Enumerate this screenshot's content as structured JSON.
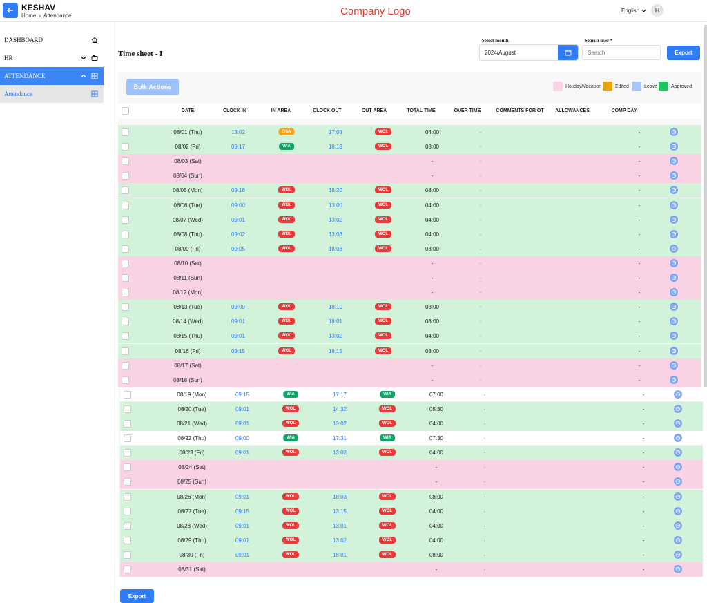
{
  "header": {
    "user_name": "KESHAV",
    "breadcrumb": [
      "Home",
      "Attendance"
    ],
    "logo_text": "Company Logo",
    "language": "English",
    "avatar_initial": "H"
  },
  "sidebar": {
    "items": [
      {
        "label": "DASHBOARD",
        "icon": "home-icon"
      },
      {
        "label": "HR",
        "icon": "folder-icon"
      },
      {
        "label": "ATTENDANCE",
        "icon": "grid-icon",
        "active": true
      },
      {
        "label": "Attendance",
        "icon": "grid-icon",
        "sub": true
      }
    ]
  },
  "page": {
    "title": "Time sheet",
    "title_suffix": "- I",
    "select_month_label": "Select month",
    "select_month_value": "2024/August",
    "search_user_label": "Search user *",
    "search_placeholder": "Search",
    "export_label": "Export",
    "bulk_actions_label": "Bulk Actions",
    "export_bottom_label": "Export"
  },
  "legend": [
    {
      "label": "Holiday/Vacation",
      "color": "#f9d3e3"
    },
    {
      "label": "Edited",
      "color": "#e8a40f"
    },
    {
      "label": "Leave",
      "color": "#a8c8fb"
    },
    {
      "label": "Approved",
      "color": "#1fc15e"
    }
  ],
  "colors": {
    "accent": "#2f7cf6",
    "approved_row": "#d2f2da",
    "holiday_row": "#f9d3e3",
    "plain_row": "#ffffff"
  },
  "table": {
    "headers": [
      "DATE",
      "CLOCK IN",
      "IN AREA",
      "CLOCK OUT",
      "OUT AREA",
      "TOTAL TIME",
      "OVER TIME",
      "COMMENTS FOR OT",
      "ALLOWANCES",
      "COMP DAY"
    ],
    "rows": [
      {
        "date": "08/01 (Thu)",
        "in": "13:02",
        "in_area": "OSA",
        "out": "17:03",
        "out_area": "WOL",
        "total": "04:00",
        "ot": "-",
        "comp": "-",
        "status": "approved"
      },
      {
        "date": "08/02 (Fri)",
        "in": "09:17",
        "in_area": "WIA",
        "out": "18:18",
        "out_area": "WOL",
        "total": "08:00",
        "ot": "-",
        "comp": "-",
        "status": "approved"
      },
      {
        "date": "08/03 (Sat)",
        "in": "",
        "in_area": "",
        "out": "",
        "out_area": "",
        "total": "-",
        "ot": "-",
        "comp": "-",
        "status": "holiday"
      },
      {
        "date": "08/04 (Sun)",
        "in": "",
        "in_area": "",
        "out": "",
        "out_area": "",
        "total": "-",
        "ot": "-",
        "comp": "-",
        "status": "holiday"
      },
      {
        "date": "08/05 (Mon)",
        "in": "09:18",
        "in_area": "WOL",
        "out": "18:20",
        "out_area": "WOL",
        "total": "08:00",
        "ot": "-",
        "comp": "-",
        "status": "approved"
      },
      {
        "date": "08/06 (Tue)",
        "in": "09:00",
        "in_area": "WOL",
        "out": "13:00",
        "out_area": "WOL",
        "total": "04:00",
        "ot": "-",
        "comp": "-",
        "status": "approved"
      },
      {
        "date": "08/07 (Wed)",
        "in": "09:01",
        "in_area": "WOL",
        "out": "13:02",
        "out_area": "WOL",
        "total": "04:00",
        "ot": "-",
        "comp": "-",
        "status": "approved"
      },
      {
        "date": "08/08 (Thu)",
        "in": "09:02",
        "in_area": "WOL",
        "out": "13:03",
        "out_area": "WOL",
        "total": "04:00",
        "ot": "-",
        "comp": "-",
        "status": "approved"
      },
      {
        "date": "08/09 (Fri)",
        "in": "09:05",
        "in_area": "WOL",
        "out": "18:06",
        "out_area": "WOL",
        "total": "08:00",
        "ot": "-",
        "comp": "-",
        "status": "approved"
      },
      {
        "date": "08/10 (Sat)",
        "in": "",
        "in_area": "",
        "out": "",
        "out_area": "",
        "total": "-",
        "ot": "-",
        "comp": "-",
        "status": "holiday"
      },
      {
        "date": "08/11 (Sun)",
        "in": "",
        "in_area": "",
        "out": "",
        "out_area": "",
        "total": "-",
        "ot": "-",
        "comp": "-",
        "status": "holiday"
      },
      {
        "date": "08/12 (Mon)",
        "in": "",
        "in_area": "",
        "out": "",
        "out_area": "",
        "total": "-",
        "ot": "-",
        "comp": "-",
        "status": "holiday"
      },
      {
        "date": "08/13 (Tue)",
        "in": "09:09",
        "in_area": "WOL",
        "out": "18:10",
        "out_area": "WOL",
        "total": "08:00",
        "ot": "-",
        "comp": "-",
        "status": "approved"
      },
      {
        "date": "08/14 (Wed)",
        "in": "09:01",
        "in_area": "WOL",
        "out": "18:01",
        "out_area": "WOL",
        "total": "08:00",
        "ot": "-",
        "comp": "-",
        "status": "approved"
      },
      {
        "date": "08/15 (Thu)",
        "in": "09:01",
        "in_area": "WOL",
        "out": "13:02",
        "out_area": "WOL",
        "total": "04:00",
        "ot": "-",
        "comp": "-",
        "status": "approved"
      },
      {
        "date": "08/16 (Fri)",
        "in": "09:15",
        "in_area": "WOL",
        "out": "18:15",
        "out_area": "WOL",
        "total": "08:00",
        "ot": "-",
        "comp": "-",
        "status": "approved"
      },
      {
        "date": "08/17 (Sat)",
        "in": "",
        "in_area": "",
        "out": "",
        "out_area": "",
        "total": "-",
        "ot": "-",
        "comp": "-",
        "status": "holiday"
      },
      {
        "date": "08/18 (Sun)",
        "in": "",
        "in_area": "",
        "out": "",
        "out_area": "",
        "total": "-",
        "ot": "-",
        "comp": "-",
        "status": "holiday"
      },
      {
        "date": "08/19 (Mon)",
        "in": "09:15",
        "in_area": "WIA",
        "out": "17:17",
        "out_area": "WIA",
        "total": "07:00",
        "ot": "-",
        "comp": "-",
        "status": "plain"
      },
      {
        "date": "08/20 (Tue)",
        "in": "09:01",
        "in_area": "WOL",
        "out": "14:32",
        "out_area": "WOL",
        "total": "05:30",
        "ot": "-",
        "comp": "-",
        "status": "approved"
      },
      {
        "date": "08/21 (Wed)",
        "in": "09:01",
        "in_area": "WOL",
        "out": "13:02",
        "out_area": "WOL",
        "total": "04:00",
        "ot": "-",
        "comp": "-",
        "status": "approved"
      },
      {
        "date": "08/22 (Thu)",
        "in": "09:00",
        "in_area": "WIA",
        "out": "17:31",
        "out_area": "WIA",
        "total": "07:30",
        "ot": "-",
        "comp": "-",
        "status": "plain"
      },
      {
        "date": "08/23 (Fri)",
        "in": "09:01",
        "in_area": "WOL",
        "out": "13:02",
        "out_area": "WOL",
        "total": "04:00",
        "ot": "-",
        "comp": "-",
        "status": "approved"
      },
      {
        "date": "08/24 (Sat)",
        "in": "",
        "in_area": "",
        "out": "",
        "out_area": "",
        "total": "-",
        "ot": "-",
        "comp": "-",
        "status": "holiday"
      },
      {
        "date": "08/25 (Sun)",
        "in": "",
        "in_area": "",
        "out": "",
        "out_area": "",
        "total": "-",
        "ot": "-",
        "comp": "-",
        "status": "holiday"
      },
      {
        "date": "08/26 (Mon)",
        "in": "09:01",
        "in_area": "WOL",
        "out": "18:03",
        "out_area": "WOL",
        "total": "08:00",
        "ot": "-",
        "comp": "-",
        "status": "approved"
      },
      {
        "date": "08/27 (Tue)",
        "in": "09:15",
        "in_area": "WOL",
        "out": "13:15",
        "out_area": "WOL",
        "total": "04:00",
        "ot": "-",
        "comp": "-",
        "status": "approved"
      },
      {
        "date": "08/28 (Wed)",
        "in": "09:01",
        "in_area": "WOL",
        "out": "13:01",
        "out_area": "WOL",
        "total": "04:00",
        "ot": "-",
        "comp": "-",
        "status": "approved"
      },
      {
        "date": "08/29 (Thu)",
        "in": "09:01",
        "in_area": "WOL",
        "out": "13:02",
        "out_area": "WOL",
        "total": "04:00",
        "ot": "-",
        "comp": "-",
        "status": "approved"
      },
      {
        "date": "08/30 (Fri)",
        "in": "09:01",
        "in_area": "WOL",
        "out": "18:01",
        "out_area": "WOL",
        "total": "08:00",
        "ot": "-",
        "comp": "-",
        "status": "approved"
      },
      {
        "date": "08/31 (Sat)",
        "in": "",
        "in_area": "",
        "out": "",
        "out_area": "",
        "total": "-",
        "ot": "-",
        "comp": "-",
        "status": "holiday"
      }
    ]
  }
}
